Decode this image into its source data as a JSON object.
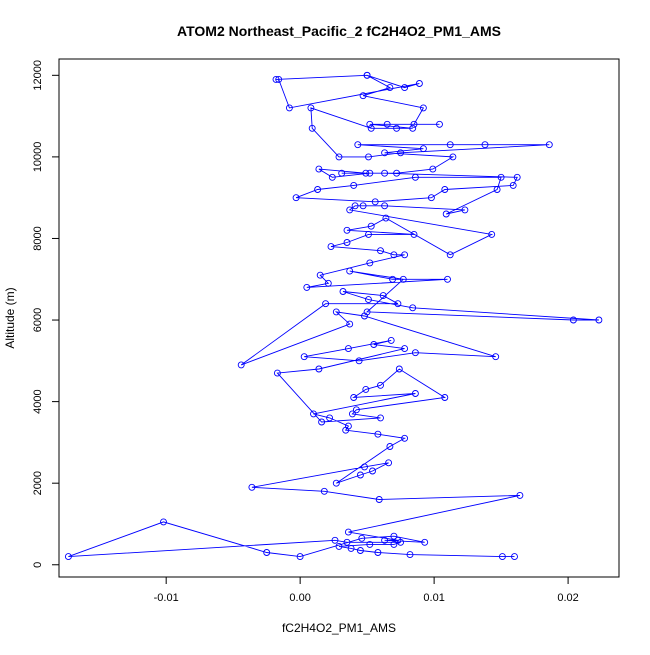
{
  "chart_data": {
    "type": "line",
    "title": "ATOM2 Northeast_Pacific_2 fC2H4O2_PM1_AMS",
    "xlabel": "fC2H4O2_PM1_AMS",
    "ylabel": "Altitude (m)",
    "xlim": [
      -0.018,
      0.0238
    ],
    "ylim": [
      -300,
      12400
    ],
    "x_ticks": [
      -0.01,
      0.0,
      0.01,
      0.02
    ],
    "x_tick_labels": [
      "-0.01",
      "0.00",
      "0.01",
      "0.02"
    ],
    "y_ticks": [
      0,
      2000,
      4000,
      6000,
      8000,
      10000,
      12000
    ],
    "y_tick_labels": [
      "0",
      "2000",
      "4000",
      "6000",
      "8000",
      "10000",
      "12000"
    ],
    "grid": false,
    "marker": "open-circle",
    "color": "#0000ff",
    "series": [
      {
        "x": [
          0.016,
          0.0151,
          0.0082,
          0.0058,
          0.0045,
          0.0038,
          0.0029,
          0.0052,
          0.007,
          0.0075,
          0.0035,
          0.0026,
          -0.0173,
          -0.0102,
          -0.0025,
          0.0,
          0.0046,
          0.007,
          0.0093,
          0.0063,
          0.0073,
          0.0036,
          0.0164,
          0.0059,
          0.0018,
          -0.0036,
          0.0048,
          0.0066,
          0.0054,
          0.0045,
          0.0027,
          0.0067,
          0.0078,
          0.0058,
          0.0034,
          0.0036,
          0.0022,
          0.001,
          0.0086,
          0.004,
          0.0049,
          0.006,
          0.0074,
          0.0108,
          0.0042,
          0.0039,
          0.006,
          0.0016,
          -0.0017,
          0.0014,
          0.0078,
          0.0055,
          0.0068,
          0.0036,
          0.0003,
          0.0044,
          0.0086,
          0.0146,
          0.0048,
          0.0027,
          0.0037,
          -0.0044,
          0.0019,
          0.0073,
          0.0062,
          0.0032,
          0.0051,
          0.0084,
          0.0223,
          0.0204,
          0.005,
          0.0077,
          0.0037,
          0.0069,
          0.011,
          0.0005,
          0.0021,
          0.0015,
          0.0052,
          0.0078,
          0.007,
          0.006,
          0.0023,
          0.0035,
          0.0051,
          0.0085,
          0.0035,
          0.0053,
          0.0064,
          0.0112,
          0.0143,
          0.0037,
          0.0041,
          0.0047,
          0.0063,
          0.0123,
          0.0109,
          0.0147,
          0.015,
          0.0086,
          0.004,
          0.0013,
          -0.0003,
          0.0056,
          0.0098,
          0.0108,
          0.0159,
          0.0162,
          0.0063,
          0.0049,
          0.0014,
          0.0024,
          0.0052,
          0.0031,
          0.0072,
          0.0099,
          0.0114,
          0.0063,
          0.0092,
          0.0043,
          0.0112,
          0.0138,
          0.0186,
          0.0075,
          0.0051,
          0.0029,
          0.0009,
          0.0008,
          0.0053,
          0.0072,
          0.0084,
          0.0052,
          0.0104,
          0.0065,
          0.0085,
          0.0092,
          0.0047,
          0.0067,
          0.005,
          0.0078,
          0.0089,
          -0.0008,
          -0.0016,
          -0.0018,
          0.005
        ],
        "y": [
          200,
          200,
          250,
          300,
          350,
          400,
          450,
          500,
          500,
          550,
          550,
          600,
          200,
          1050,
          300,
          200,
          650,
          700,
          550,
          600,
          600,
          800,
          1700,
          1600,
          1800,
          1900,
          2400,
          2500,
          2300,
          2200,
          2000,
          2900,
          3100,
          3200,
          3300,
          3400,
          3600,
          3700,
          4200,
          4100,
          4300,
          4400,
          4800,
          4100,
          3800,
          3700,
          3600,
          3500,
          4700,
          4800,
          5300,
          5400,
          5500,
          5300,
          5100,
          5000,
          5200,
          5100,
          6100,
          6200,
          5900,
          4900,
          6400,
          6400,
          6600,
          6700,
          6500,
          6300,
          6000,
          6000,
          6200,
          7000,
          7200,
          7000,
          7000,
          6800,
          6900,
          7100,
          7400,
          7600,
          7600,
          7700,
          7800,
          7900,
          8100,
          8100,
          8200,
          8300,
          8500,
          7600,
          8100,
          8700,
          8800,
          8800,
          8800,
          8700,
          8600,
          9200,
          9500,
          9500,
          9300,
          9200,
          9000,
          8900,
          9000,
          9200,
          9300,
          9500,
          9600,
          9600,
          9700,
          9500,
          9600,
          9600,
          9600,
          9700,
          10000,
          10100,
          10200,
          10300,
          10300,
          10300,
          10300,
          10100,
          10000,
          10000,
          10700,
          11200,
          10700,
          10700,
          10700,
          10800,
          10800,
          10800,
          10800,
          11200,
          11500,
          11700,
          12000,
          11700,
          11800,
          11200,
          11900,
          11900,
          12000
        ]
      }
    ]
  }
}
